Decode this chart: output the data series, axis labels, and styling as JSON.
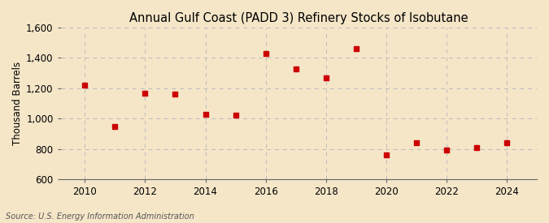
{
  "title": "Annual Gulf Coast (PADD 3) Refinery Stocks of Isobutane",
  "ylabel": "Thousand Barrels",
  "source": "Source: U.S. Energy Information Administration",
  "years": [
    2010,
    2011,
    2012,
    2013,
    2014,
    2015,
    2016,
    2017,
    2018,
    2019,
    2020,
    2021,
    2022,
    2023,
    2024
  ],
  "values": [
    1220,
    950,
    1170,
    1165,
    1030,
    1025,
    1430,
    1330,
    1270,
    1460,
    765,
    840,
    795,
    810,
    840
  ],
  "marker_color": "#cc0000",
  "background_color": "#f5e6c8",
  "grid_color": "#bbbbbb",
  "ylim": [
    600,
    1600
  ],
  "yticks": [
    600,
    800,
    1000,
    1200,
    1400,
    1600
  ],
  "xticks": [
    2010,
    2012,
    2014,
    2016,
    2018,
    2020,
    2022,
    2024
  ],
  "xlim": [
    2009.2,
    2025.0
  ],
  "title_fontsize": 10.5,
  "axis_fontsize": 8.5,
  "source_fontsize": 7.0
}
